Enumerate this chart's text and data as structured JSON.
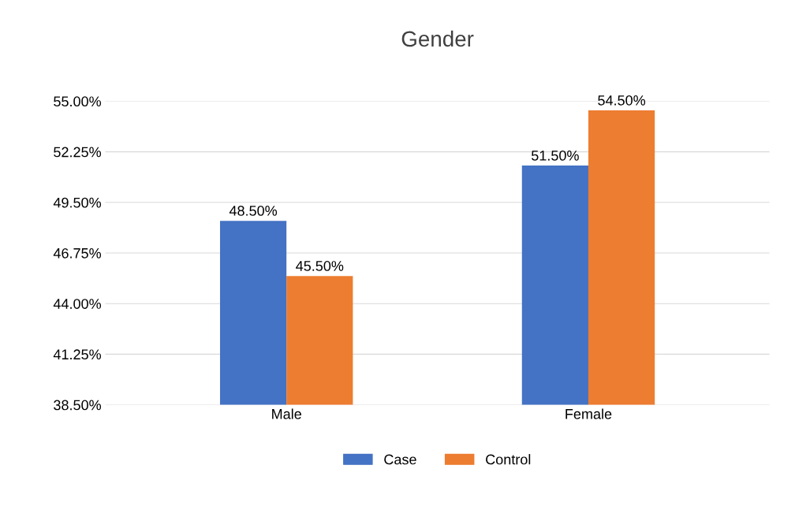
{
  "chart_data": {
    "type": "bar",
    "title": "Gender",
    "categories": [
      "Male",
      "Female"
    ],
    "series": [
      {
        "name": "Case",
        "color": "#4472c4",
        "values": [
          48.5,
          51.5
        ],
        "value_labels": [
          "48.50%",
          "51.50%"
        ]
      },
      {
        "name": "Control",
        "color": "#ed7d31",
        "values": [
          45.5,
          54.5
        ],
        "value_labels": [
          "45.50%",
          "54.50%"
        ]
      }
    ],
    "ylim": [
      38.5,
      55
    ],
    "yticks": [
      {
        "value": 38.5,
        "label": "38.50%"
      },
      {
        "value": 41.25,
        "label": "41.25%"
      },
      {
        "value": 44,
        "label": "44.00%"
      },
      {
        "value": 46.75,
        "label": "46.75%"
      },
      {
        "value": 49.5,
        "label": "49.50%"
      },
      {
        "value": 52.25,
        "label": "52.25%"
      },
      {
        "value": 55,
        "label": "55.00%"
      }
    ],
    "grid": "y",
    "legend": "bottom"
  }
}
